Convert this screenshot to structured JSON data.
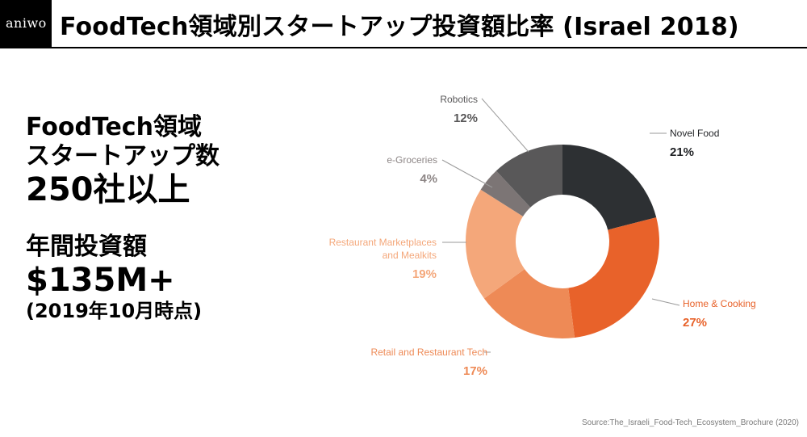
{
  "header": {
    "logo": "aniwo",
    "title": "FoodTech領域別スタートアップ投資額比率 (Israel 2018)"
  },
  "left_panel": {
    "line1": "FoodTech領域",
    "line2": "スタートアップ数",
    "line3": "250社以上",
    "line4": "年間投資額",
    "line5": "$135M+",
    "line6": "(2019年10月時点)"
  },
  "chart_data": {
    "type": "pie",
    "donut": true,
    "categories": [
      "Novel Food",
      "Home & Cooking",
      "Retail and Restaurant Tech",
      "Restaurant Marketplaces and Mealkits",
      "e-Groceries",
      "Robotics"
    ],
    "values": [
      21,
      27,
      17,
      19,
      4,
      12
    ],
    "value_labels": [
      "21%",
      "27%",
      "17%",
      "19%",
      "4%",
      "12%"
    ],
    "colors": [
      "#2d3033",
      "#e8622a",
      "#ee8a56",
      "#f4a77a",
      "#7c7575",
      "#595859"
    ],
    "label_colors": [
      "#1f2124",
      "#e8622a",
      "#ee8a56",
      "#f4a77a",
      "#8d8686",
      "#595859"
    ],
    "label_lines": [
      [
        "Novel Food"
      ],
      [
        "Home & Cooking"
      ],
      [
        "Retail and Restaurant Tech"
      ],
      [
        "Restaurant Marketplaces",
        "and Mealkits"
      ],
      [
        "e-Groceries"
      ],
      [
        "Robotics"
      ]
    ],
    "start_angle_deg": 0,
    "direction": "clockwise"
  },
  "source": "Source:The_Israeli_Food-Tech_Ecosystem_Brochure (2020)"
}
